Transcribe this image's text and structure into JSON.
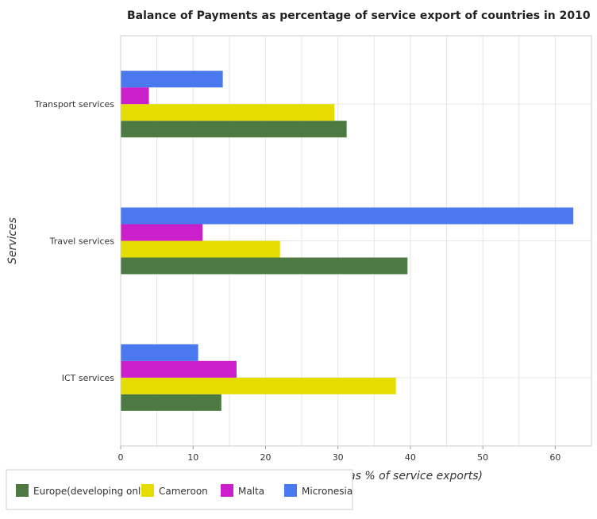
{
  "chart_data": {
    "type": "bar",
    "orientation": "horizontal",
    "title": "Balance of Payments as percentage of service export of countries in 2010",
    "xlabel": "Balance of Payment (as % of service exports)",
    "ylabel": "Services",
    "xlim": [
      0,
      65
    ],
    "x_ticks": [
      0,
      10,
      20,
      30,
      40,
      50,
      60
    ],
    "grid": true,
    "legend_position": "bottom-left",
    "categories": [
      "Transport services",
      "Travel services",
      "ICT services"
    ],
    "series": [
      {
        "name": "Europe(developing only)",
        "color": "#4c7a42",
        "values": [
          31.2,
          39.6,
          13.9
        ]
      },
      {
        "name": "Cameroon",
        "color": "#e5dd00",
        "values": [
          29.5,
          22.0,
          38.0
        ]
      },
      {
        "name": "Malta",
        "color": "#cc1fcc",
        "values": [
          3.9,
          11.3,
          16.0
        ]
      },
      {
        "name": "Micronesia",
        "color": "#4a78ee",
        "values": [
          14.1,
          62.5,
          10.7
        ]
      }
    ]
  }
}
